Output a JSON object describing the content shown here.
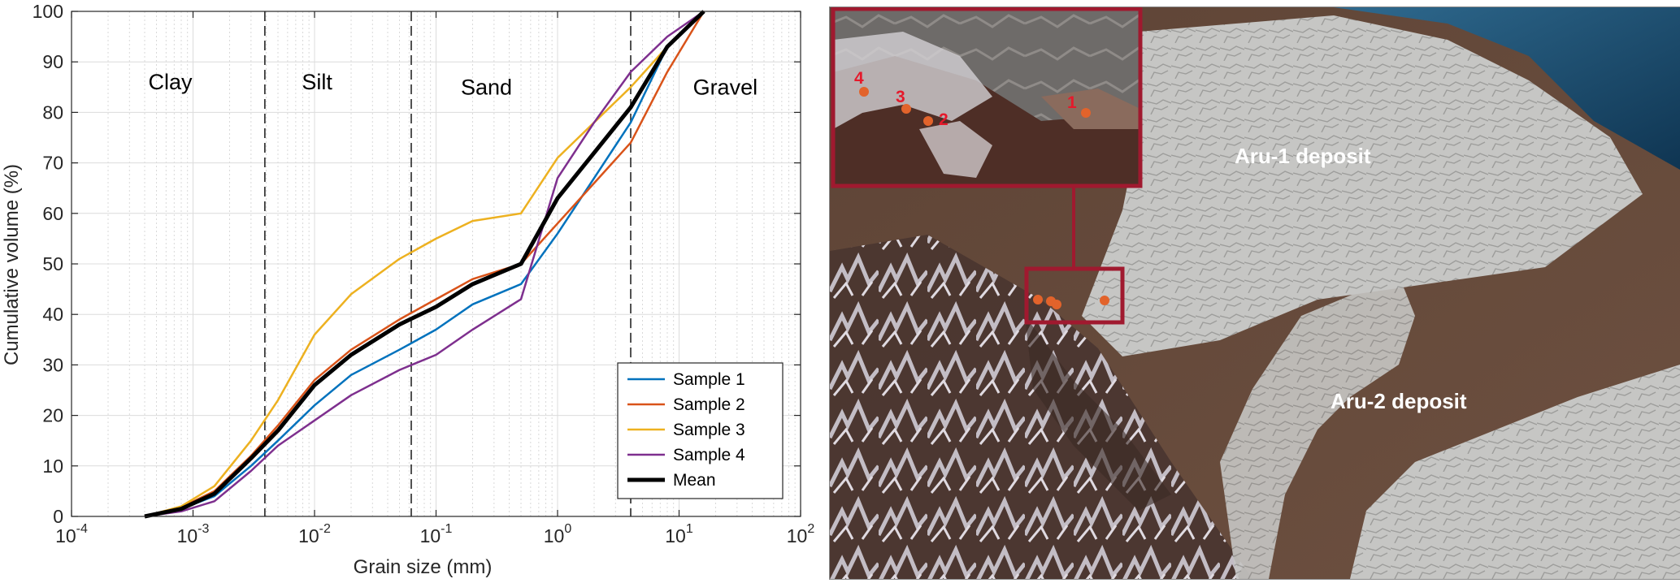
{
  "chart_data": {
    "type": "line",
    "xscale": "log",
    "xlabel": "Grain size (mm)",
    "ylabel": "Cumulative volume (%)",
    "xlim": [
      0.0001,
      100
    ],
    "ylim": [
      0,
      100
    ],
    "xticks": [
      {
        "label": "10",
        "exp": "-4"
      },
      {
        "label": "10",
        "exp": "-3"
      },
      {
        "label": "10",
        "exp": "-2"
      },
      {
        "label": "10",
        "exp": "-1"
      },
      {
        "label": "10",
        "exp": "0"
      },
      {
        "label": "10",
        "exp": "1"
      },
      {
        "label": "10",
        "exp": "2"
      }
    ],
    "yticks": [
      "0",
      "10",
      "20",
      "30",
      "40",
      "50",
      "60",
      "70",
      "80",
      "90",
      "100"
    ],
    "grid": true,
    "class_boundaries_mm": [
      0.0039,
      0.0625,
      4
    ],
    "class_labels": [
      {
        "text": "Clay",
        "x": 0.00065,
        "y": 86
      },
      {
        "text": "Silt",
        "x": 0.0105,
        "y": 86
      },
      {
        "text": "Sand",
        "x": 0.26,
        "y": 85
      },
      {
        "text": "Gravel",
        "x": 24,
        "y": 85
      }
    ],
    "legend_position": "bottom-right",
    "series": [
      {
        "name": "Sample 1",
        "color": "#0072BD",
        "width": 2.5,
        "x": [
          0.0004,
          0.0008,
          0.0015,
          0.003,
          0.005,
          0.01,
          0.02,
          0.05,
          0.1,
          0.2,
          0.5,
          1,
          2,
          4,
          8,
          16
        ],
        "y": [
          0,
          1.5,
          4,
          10,
          15,
          22,
          28,
          33,
          37,
          42,
          46,
          56,
          67,
          78,
          93,
          100
        ]
      },
      {
        "name": "Sample 2",
        "color": "#D95319",
        "width": 2.5,
        "x": [
          0.0004,
          0.0008,
          0.0015,
          0.003,
          0.005,
          0.01,
          0.02,
          0.05,
          0.1,
          0.2,
          0.5,
          1,
          2,
          4,
          8,
          16
        ],
        "y": [
          0,
          1.8,
          5,
          12,
          18,
          27,
          33,
          39,
          43,
          47,
          50,
          58,
          66,
          74,
          88,
          100
        ]
      },
      {
        "name": "Sample 3",
        "color": "#EDB120",
        "width": 2.5,
        "x": [
          0.0004,
          0.0008,
          0.0015,
          0.003,
          0.005,
          0.01,
          0.02,
          0.05,
          0.1,
          0.2,
          0.5,
          1,
          2,
          4,
          8,
          16
        ],
        "y": [
          0,
          2,
          6,
          15,
          23,
          36,
          44,
          51,
          55,
          58.5,
          60,
          71,
          78,
          85,
          93,
          100
        ]
      },
      {
        "name": "Sample 4",
        "color": "#7E2F8E",
        "width": 2.5,
        "x": [
          0.0004,
          0.0008,
          0.0015,
          0.003,
          0.005,
          0.01,
          0.02,
          0.05,
          0.1,
          0.2,
          0.5,
          1,
          2,
          4,
          8,
          16
        ],
        "y": [
          0,
          1,
          3,
          9,
          14,
          19,
          24,
          29,
          32,
          37,
          43,
          67,
          78,
          88,
          95,
          100
        ]
      },
      {
        "name": "Mean",
        "color": "#000000",
        "width": 5,
        "x": [
          0.0004,
          0.0008,
          0.0015,
          0.003,
          0.005,
          0.01,
          0.02,
          0.05,
          0.1,
          0.2,
          0.5,
          1,
          2,
          4,
          8,
          16
        ],
        "y": [
          0,
          1.5,
          4.5,
          11.5,
          17,
          26,
          32,
          38,
          41.5,
          46,
          50,
          63,
          72,
          81,
          93,
          100
        ]
      }
    ]
  },
  "map": {
    "labels": {
      "aru1": "Aru-1 deposit",
      "aru2": "Aru-2 deposit"
    },
    "sample_markers": [
      {
        "id": "1",
        "label": "1"
      },
      {
        "id": "2",
        "label": "2"
      },
      {
        "id": "3",
        "label": "3"
      },
      {
        "id": "4",
        "label": "4"
      }
    ],
    "colors": {
      "frame": "#A0192F",
      "marker": "#E2632B",
      "marker_label": "#E5192B",
      "deposit_label": "#FFFFFF"
    }
  }
}
